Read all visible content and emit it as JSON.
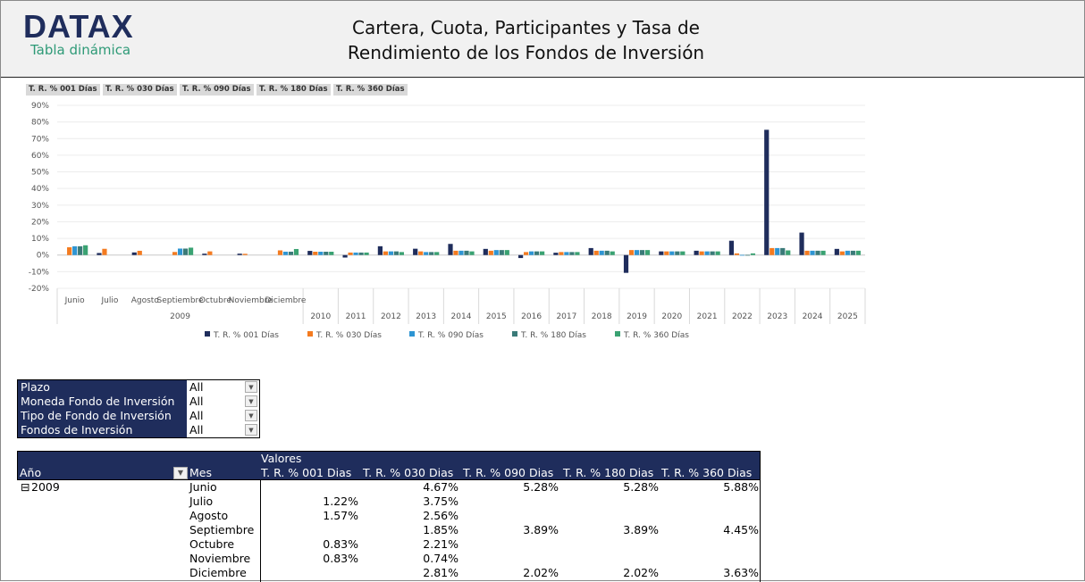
{
  "header": {
    "logo": "DATAX",
    "subtitle": "Tabla dinámica",
    "title_line1": "Cartera, Cuota, Participantes y Tasa de",
    "title_line2": "Rendimiento de los Fondos de Inversión"
  },
  "field_buttons": [
    "T. R. % 001 Días",
    "T. R. % 030 Días",
    "T. R. % 090 Días",
    "T. R. % 180 Días",
    "T. R. % 360 Días"
  ],
  "chart_data": {
    "type": "bar",
    "ylim": [
      -0.2,
      0.9
    ],
    "yticks": [
      "90%",
      "80%",
      "70%",
      "60%",
      "50%",
      "40%",
      "30%",
      "20%",
      "10%",
      "0%",
      "-10%",
      "-20%"
    ],
    "grid": true,
    "legend_position": "bottom",
    "month_labels": [
      "Junio",
      "Julio",
      "Agosto",
      "Septiembre",
      "Octubre",
      "Noviembre",
      "Diciembre"
    ],
    "group_label_2009": "2009",
    "categories": [
      "Junio",
      "Julio",
      "Agosto",
      "Septiembre",
      "Octubre",
      "Noviembre",
      "Diciembre",
      "2010",
      "2011",
      "2012",
      "2013",
      "2014",
      "2015",
      "2016",
      "2017",
      "2018",
      "2019",
      "2020",
      "2021",
      "2022",
      "2023",
      "2024",
      "2025"
    ],
    "series": [
      {
        "name": "T. R. % 001 Días",
        "color": "#1f2d5c",
        "values": [
          null,
          1.22,
          1.57,
          null,
          0.83,
          0.83,
          null,
          2.5,
          -1.5,
          5.3,
          3.8,
          6.7,
          3.7,
          -1.8,
          1.4,
          4.2,
          -10.7,
          2.2,
          2.6,
          8.6,
          75.3,
          13.5,
          3.7
        ]
      },
      {
        "name": "T. R. % 030 Días",
        "color": "#f47b20",
        "values": [
          4.67,
          3.75,
          2.56,
          1.85,
          2.21,
          0.74,
          2.81,
          2.0,
          1.5,
          2.2,
          2.2,
          2.6,
          2.6,
          1.8,
          1.8,
          2.6,
          3.0,
          2.2,
          2.2,
          1.0,
          4.2,
          2.6,
          2.2
        ]
      },
      {
        "name": "T. R. % 090 Días",
        "color": "#2e95d3",
        "values": [
          5.28,
          null,
          null,
          3.89,
          null,
          null,
          2.02,
          2.0,
          1.5,
          2.2,
          1.8,
          2.6,
          3.0,
          2.2,
          1.8,
          2.6,
          3.0,
          2.2,
          2.2,
          0.1,
          4.2,
          2.6,
          2.6
        ]
      },
      {
        "name": "T. R. % 180 Días",
        "color": "#3a7a78",
        "values": [
          5.28,
          null,
          null,
          3.89,
          null,
          null,
          2.02,
          2.0,
          1.5,
          2.2,
          1.8,
          2.6,
          3.0,
          2.2,
          1.8,
          2.6,
          3.0,
          2.2,
          2.2,
          0.1,
          4.2,
          2.6,
          2.6
        ]
      },
      {
        "name": "T. R. % 360 Días",
        "color": "#3aa272",
        "values": [
          5.88,
          null,
          null,
          4.45,
          null,
          null,
          3.63,
          2.0,
          1.5,
          1.8,
          1.8,
          2.2,
          3.0,
          2.2,
          1.8,
          2.2,
          3.0,
          2.2,
          2.2,
          1.0,
          2.8,
          2.6,
          2.6
        ]
      }
    ]
  },
  "filters": [
    {
      "label": "Plazo",
      "value": "All"
    },
    {
      "label": "Moneda Fondo de Inversión",
      "value": "All"
    },
    {
      "label": "Tipo de Fondo de Inversión",
      "value": "All"
    },
    {
      "label": "Fondos de Inversión",
      "value": "All"
    }
  ],
  "pivot": {
    "values_label": "Valores",
    "row_header_year": "Año",
    "row_header_month": "Mes",
    "columns": [
      "T. R. % 001 Dias",
      "T. R. % 030 Dias",
      "T. R. % 090 Dias",
      "T. R. % 180 Dias",
      "T. R. % 360 Dias"
    ],
    "year": "2009",
    "rows": [
      {
        "mes": "Junio",
        "v": [
          "",
          "4.67%",
          "5.28%",
          "5.28%",
          "5.88%"
        ]
      },
      {
        "mes": "Julio",
        "v": [
          "1.22%",
          "3.75%",
          "",
          "",
          ""
        ]
      },
      {
        "mes": "Agosto",
        "v": [
          "1.57%",
          "2.56%",
          "",
          "",
          ""
        ]
      },
      {
        "mes": "Septiembre",
        "v": [
          "",
          "1.85%",
          "3.89%",
          "3.89%",
          "4.45%"
        ]
      },
      {
        "mes": "Octubre",
        "v": [
          "0.83%",
          "2.21%",
          "",
          "",
          ""
        ]
      },
      {
        "mes": "Noviembre",
        "v": [
          "0.83%",
          "0.74%",
          "",
          "",
          ""
        ]
      },
      {
        "mes": "Diciembre",
        "v": [
          "",
          "2.81%",
          "2.02%",
          "2.02%",
          "3.63%"
        ]
      }
    ]
  }
}
